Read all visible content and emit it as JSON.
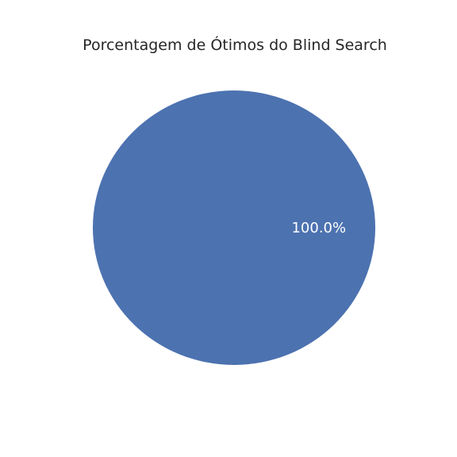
{
  "chart_data": {
    "type": "pie",
    "title": "Porcentagem de Ótimos do Blind Search",
    "slices": [
      {
        "value": 100.0,
        "label": "100.0%",
        "color": "#4c72b0"
      }
    ],
    "legend": "none"
  }
}
